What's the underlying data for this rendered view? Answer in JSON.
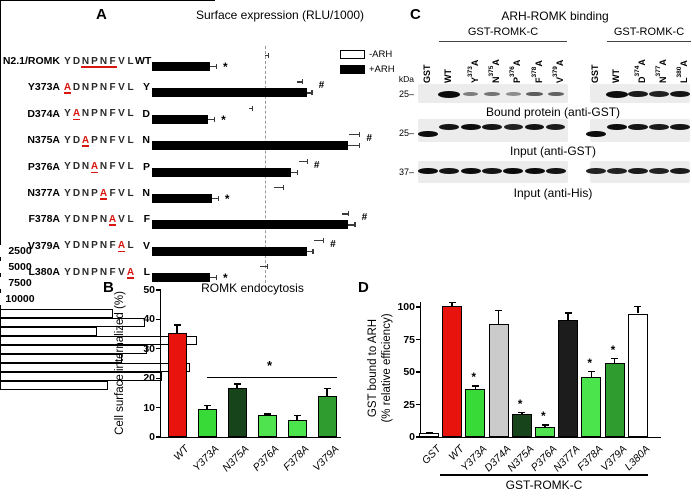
{
  "panel_labels": {
    "a": "A",
    "b": "B",
    "c": "C",
    "d": "D"
  },
  "chart_data": [
    {
      "panel": "A",
      "type": "bar",
      "orientation": "horizontal",
      "title": "Surface expression (RLU/1000)",
      "x_ticks": [
        2500,
        5000,
        7500,
        10000
      ],
      "x_max": 11200,
      "reference_line": 5900,
      "legend": [
        {
          "label": "-ARH",
          "fill": "#ffffff"
        },
        {
          "label": "+ARH",
          "fill": "#000000"
        }
      ],
      "series_names": [
        "-ARH",
        "+ARH"
      ],
      "rows": [
        {
          "name": "N2.1/ROMK",
          "sequence": "YDNPNFVL",
          "red_index": -1,
          "underline_range": [
            2,
            5
          ],
          "tick": "WT",
          "minus_arh": 5900,
          "plus_arh": 3050,
          "minus_err": 150,
          "plus_err": 300,
          "sig": "*"
        },
        {
          "name": "Y373A",
          "sequence": "ADNPNFVL",
          "red_index": 0,
          "tick": "Y",
          "minus_arh": 7600,
          "plus_arh": 8100,
          "minus_err": 250,
          "plus_err": 250,
          "sig": "#"
        },
        {
          "name": "D374A",
          "sequence": "YANPNFVL",
          "red_index": 1,
          "tick": "D",
          "minus_arh": 5100,
          "plus_arh": 2950,
          "minus_err": 150,
          "plus_err": 300,
          "sig": "*"
        },
        {
          "name": "N375A",
          "sequence": "YDAPNFVL",
          "red_index": 2,
          "tick": "N",
          "minus_arh": 10300,
          "plus_arh": 10250,
          "minus_err": 550,
          "plus_err": 600,
          "sig": "#"
        },
        {
          "name": "P376A",
          "sequence": "YDNANFVL",
          "red_index": 3,
          "tick": "P",
          "minus_arh": 7700,
          "plus_arh": 7300,
          "minus_err": 400,
          "plus_err": 300,
          "sig": "#"
        },
        {
          "name": "N377A",
          "sequence": "YDNPAFVL",
          "red_index": 4,
          "tick": "N",
          "minus_arh": 6400,
          "plus_arh": 3150,
          "minus_err": 450,
          "plus_err": 300,
          "sig": "*"
        },
        {
          "name": "F378A",
          "sequence": "YDNPNAVL",
          "red_index": 5,
          "tick": "F",
          "minus_arh": 9950,
          "plus_arh": 10250,
          "minus_err": 300,
          "plus_err": 350,
          "sig": "#"
        },
        {
          "name": "V379A",
          "sequence": "YDNPNFAL",
          "red_index": 6,
          "tick": "V",
          "minus_arh": 8500,
          "plus_arh": 8100,
          "minus_err": 450,
          "plus_err": 300,
          "sig": "#"
        },
        {
          "name": "L380A",
          "sequence": "YDNPNFVA",
          "red_index": 7,
          "tick": "L",
          "minus_arh": 5650,
          "plus_arh": 3050,
          "minus_err": 350,
          "plus_err": 300,
          "sig": "*"
        }
      ]
    },
    {
      "panel": "B",
      "type": "bar",
      "title": "ROMK endocytosis",
      "ylabel": "Cell surface internalized (%)",
      "y_ticks": [
        0,
        10,
        20,
        30,
        40,
        50
      ],
      "ylim": [
        0,
        50
      ],
      "categories": [
        "WT",
        "Y373A",
        "N375A",
        "P376A",
        "F378A",
        "V379A"
      ],
      "values": [
        35.5,
        9.5,
        16.8,
        7.6,
        5.9,
        14.1
      ],
      "errors": [
        2.9,
        1.5,
        1.4,
        0.5,
        1.6,
        2.6
      ],
      "colors": [
        "#e8130c",
        "#38da38",
        "#17441a",
        "#4fe44f",
        "#4ce44c",
        "#2e9c2e"
      ],
      "sig_line": {
        "from_index": 1,
        "to_index": 5,
        "y": 20.5,
        "symbol": "*"
      }
    },
    {
      "panel": "D",
      "type": "bar",
      "ylabel_line1": "GST bound to ARH",
      "ylabel_line2": "(% relative efficiency)",
      "y_ticks": [
        0,
        25,
        50,
        75,
        100
      ],
      "ylim": [
        0,
        105
      ],
      "categories": [
        "GST",
        "WT",
        "Y373A",
        "D374A",
        "N375A",
        "P376A",
        "N377A",
        "F378A",
        "V379A",
        "L380A"
      ],
      "values": [
        3,
        101,
        37,
        87,
        18,
        8,
        90,
        46,
        57,
        95
      ],
      "errors": [
        1,
        3,
        3,
        11,
        1.5,
        2,
        6,
        5,
        4,
        6
      ],
      "colors": [
        "#ffffff",
        "#e8130c",
        "#38da38",
        "#cbcbcb",
        "#17441a",
        "#4fe44f",
        "#1c1c1c",
        "#4ce44c",
        "#2e9c2e",
        "#ffffff"
      ],
      "stars": [
        2,
        4,
        5,
        7,
        8
      ],
      "star_symbol": "*",
      "group": {
        "label": "GST-ROMK-C",
        "from_index": 1,
        "to_index": 9
      }
    }
  ],
  "panel_c": {
    "title": "ARH-ROMK binding",
    "kda_label": "kDa",
    "groups": [
      {
        "header": "GST-ROMK-C",
        "lanes": [
          {
            "base": "GST"
          },
          {
            "base": "WT"
          },
          {
            "base": "Y",
            "sup": "373",
            "tail": "A"
          },
          {
            "base": "N",
            "sup": "375",
            "tail": "A"
          },
          {
            "base": "P",
            "sup": "376",
            "tail": "A"
          },
          {
            "base": "F",
            "sup": "378",
            "tail": "A"
          },
          {
            "base": "V",
            "sup": "379",
            "tail": "A"
          }
        ]
      },
      {
        "header": "GST-ROMK-C",
        "lanes": [
          {
            "base": "GST"
          },
          {
            "base": "WT"
          },
          {
            "base": "D",
            "sup": "374",
            "tail": "A"
          },
          {
            "base": "N",
            "sup": "377",
            "tail": "A"
          },
          {
            "base": "L",
            "sup": "380",
            "tail": "A"
          }
        ]
      }
    ],
    "blots": [
      {
        "label": "Bound protein (anti-GST)",
        "marker": "25–",
        "bands": [
          [
            0,
            1,
            0.22,
            0.28,
            0.12,
            0.45,
            0.4
          ],
          [
            0,
            1,
            0.9,
            0.85,
            0.95
          ]
        ]
      },
      {
        "label": "Input (anti-GST)",
        "marker": "25–",
        "gst_low": true,
        "bands": [
          [
            1,
            0.95,
            1,
            0.95,
            0.85,
            0.95,
            0.9
          ],
          [
            1,
            1,
            0.95,
            0.9,
            0.95
          ]
        ]
      },
      {
        "label": "Input (anti-His)",
        "marker": "37–",
        "bands": [
          [
            1,
            0.95,
            1,
            0.95,
            1,
            1,
            0.95
          ],
          [
            0.85,
            0.85,
            0.9,
            0.85,
            0.9
          ]
        ]
      }
    ]
  }
}
